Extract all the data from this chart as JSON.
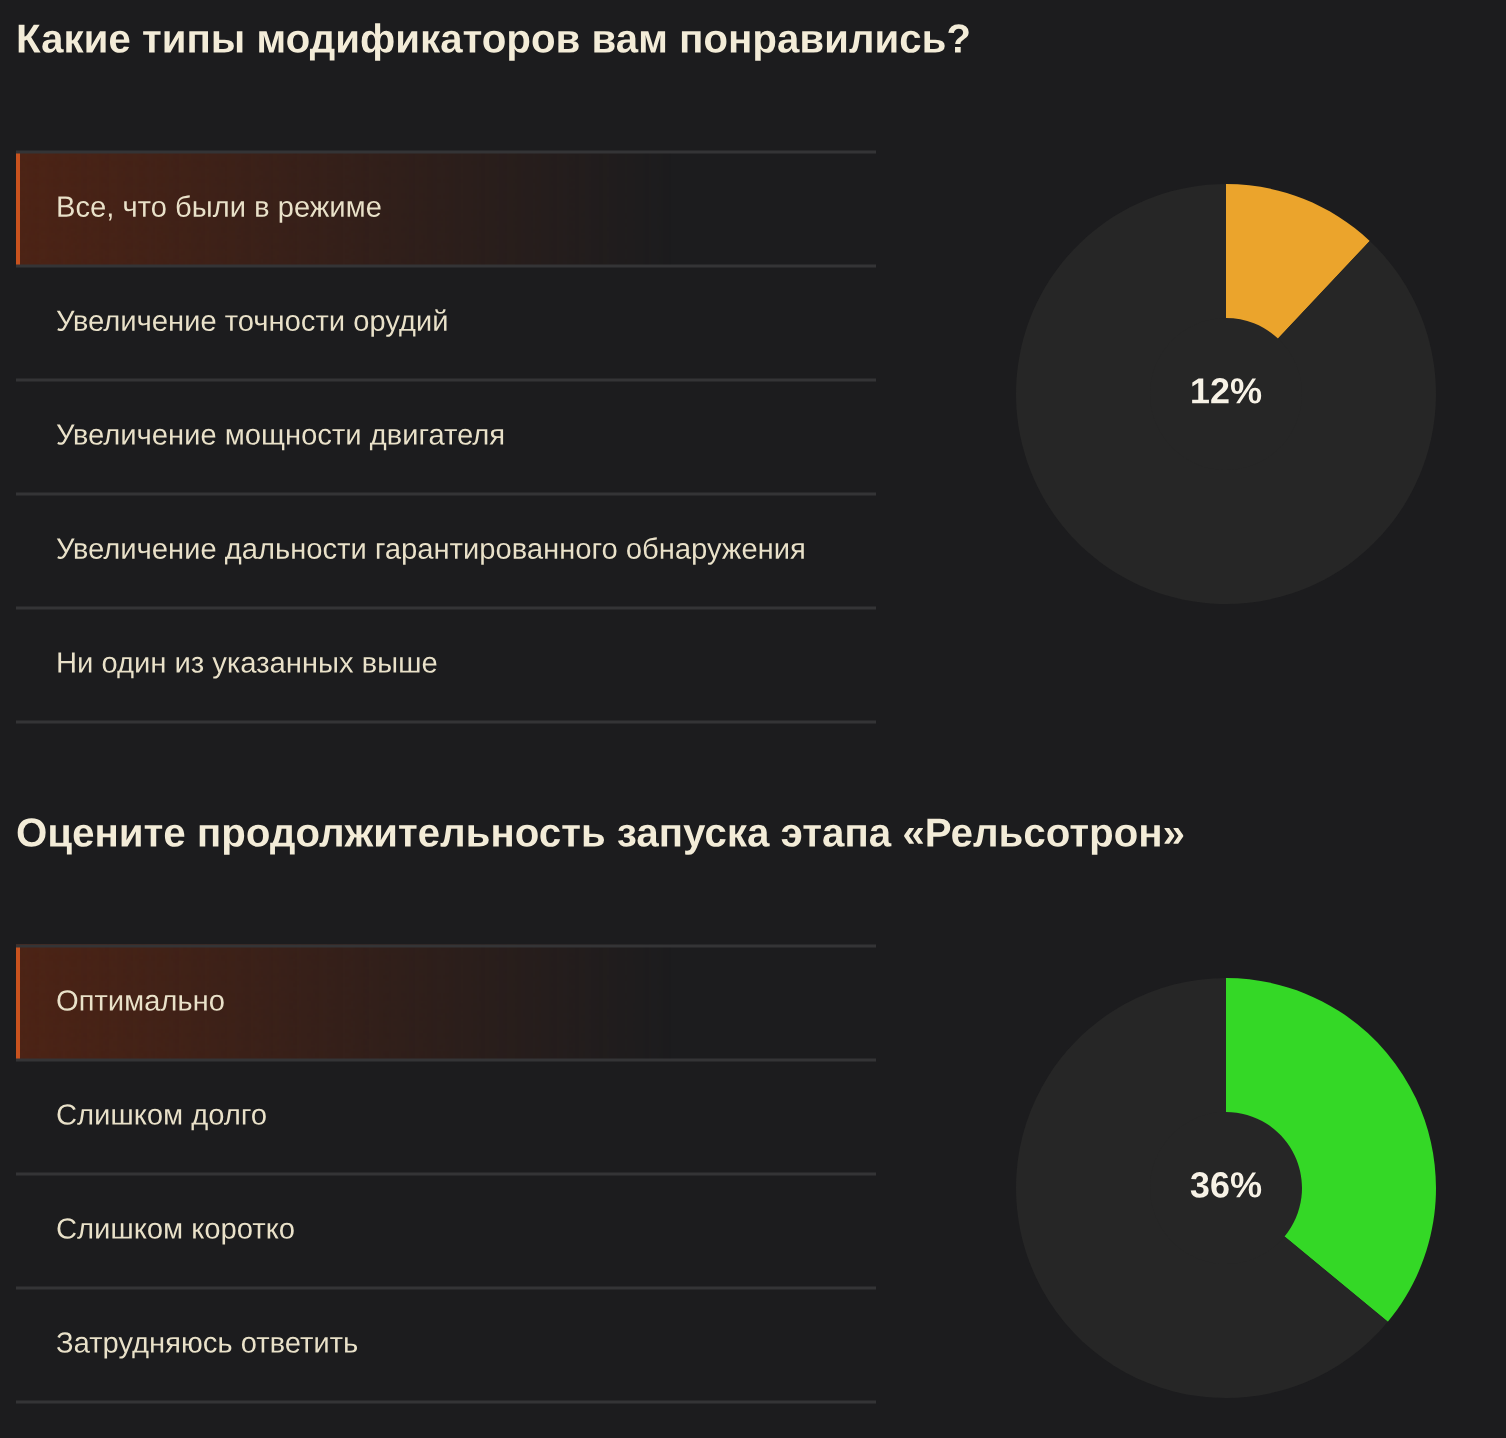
{
  "chart_data": [
    {
      "type": "donut",
      "title": "Какие типы модификаторов вам понравились?",
      "categories": [
        null,
        null
      ],
      "values": [
        12,
        88
      ],
      "colors": [
        "#eba42c",
        "#262626"
      ],
      "value_labels": [
        "12%",
        null
      ],
      "annotations": [
        "Все, что были в режиме",
        "Увеличение точности орудий",
        "Увеличение мощности двигателя",
        "Увеличение дальности гарантированного обнаружения",
        "Ни один из указанных выше"
      ]
    },
    {
      "type": "donut",
      "title": "Оцените продолжительность запуска этапа «Рельсотрон»",
      "categories": [
        null,
        null
      ],
      "values": [
        36,
        64
      ],
      "colors": [
        "#34d826",
        "#262626"
      ],
      "value_labels": [
        "36%",
        null
      ],
      "annotations": [
        "Оптимально",
        "Слишком долго",
        "Слишком коротко",
        "Затрудняюсь ответить"
      ]
    }
  ]
}
